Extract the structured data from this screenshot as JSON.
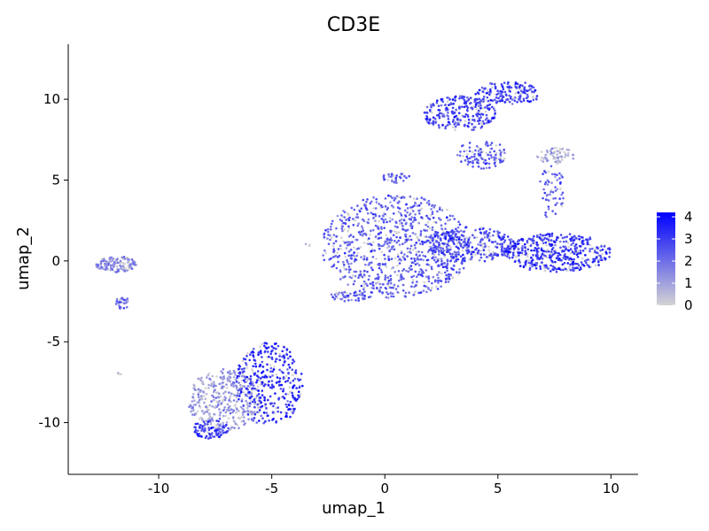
{
  "chart_data": {
    "type": "scatter",
    "title": "CD3E",
    "xlabel": "umap_1",
    "ylabel": "umap_2",
    "xlim": [
      -14,
      11.2
    ],
    "ylim": [
      -13.2,
      13.4
    ],
    "xticks": [
      -10,
      -5,
      0,
      5,
      10
    ],
    "xtick_labels": [
      "-10",
      "-5",
      "0",
      "5",
      "10"
    ],
    "yticks": [
      -10,
      -5,
      0,
      5,
      10
    ],
    "ytick_labels": [
      "-10",
      "-5",
      "0",
      "5",
      "10"
    ],
    "grid": false,
    "legend_position": "right",
    "color_scale": {
      "low": "#D3D3D3",
      "high": "#0000FF",
      "min": 0,
      "max": 4.2
    },
    "colorbar_ticks": [
      0,
      1,
      2,
      3,
      4
    ],
    "colorbar_tick_labels": [
      "0",
      "1",
      "2",
      "3",
      "4"
    ],
    "clusters": [
      {
        "cx": 0.5,
        "cy": 0.9,
        "rx": 3.3,
        "ry": 3.2,
        "n": 900,
        "mean": 2.2
      },
      {
        "cx": 3.8,
        "cy": 1.0,
        "rx": 2.0,
        "ry": 1.1,
        "n": 300,
        "mean": 2.6
      },
      {
        "cx": 7.6,
        "cy": 0.5,
        "rx": 2.4,
        "ry": 1.2,
        "n": 450,
        "mean": 2.9
      },
      {
        "cx": 3.3,
        "cy": 9.1,
        "rx": 1.6,
        "ry": 1.1,
        "n": 260,
        "mean": 2.7
      },
      {
        "cx": 5.5,
        "cy": 10.4,
        "rx": 1.5,
        "ry": 0.7,
        "n": 160,
        "mean": 2.8
      },
      {
        "cx": 4.3,
        "cy": 6.6,
        "rx": 1.1,
        "ry": 0.9,
        "n": 110,
        "mean": 2.5
      },
      {
        "cx": 7.6,
        "cy": 6.5,
        "rx": 0.9,
        "ry": 0.5,
        "n": 70,
        "mean": 0.6
      },
      {
        "cx": 7.4,
        "cy": 4.2,
        "rx": 0.6,
        "ry": 1.7,
        "n": 60,
        "mean": 2.2
      },
      {
        "cx": 0.5,
        "cy": 5.1,
        "rx": 0.7,
        "ry": 0.3,
        "n": 35,
        "mean": 2.4
      },
      {
        "cx": -1.5,
        "cy": -2.2,
        "rx": 1.0,
        "ry": 0.3,
        "n": 55,
        "mean": 2.0
      },
      {
        "cx": -5.1,
        "cy": -7.6,
        "rx": 1.5,
        "ry": 2.6,
        "n": 360,
        "mean": 3.1
      },
      {
        "cx": -7.1,
        "cy": -8.6,
        "rx": 1.6,
        "ry": 1.9,
        "n": 360,
        "mean": 1.0
      },
      {
        "cx": -7.7,
        "cy": -10.4,
        "rx": 0.8,
        "ry": 0.6,
        "n": 90,
        "mean": 2.9
      },
      {
        "cx": -11.9,
        "cy": -0.2,
        "rx": 0.9,
        "ry": 0.5,
        "n": 130,
        "mean": 1.2
      },
      {
        "cx": -11.6,
        "cy": -2.6,
        "rx": 0.3,
        "ry": 0.4,
        "n": 28,
        "mean": 2.0
      },
      {
        "cx": -11.8,
        "cy": -7.0,
        "rx": 0.15,
        "ry": 0.08,
        "n": 4,
        "mean": 0.3
      },
      {
        "cx": -3.4,
        "cy": 1.0,
        "rx": 0.12,
        "ry": 0.08,
        "n": 3,
        "mean": 0.3
      }
    ]
  }
}
